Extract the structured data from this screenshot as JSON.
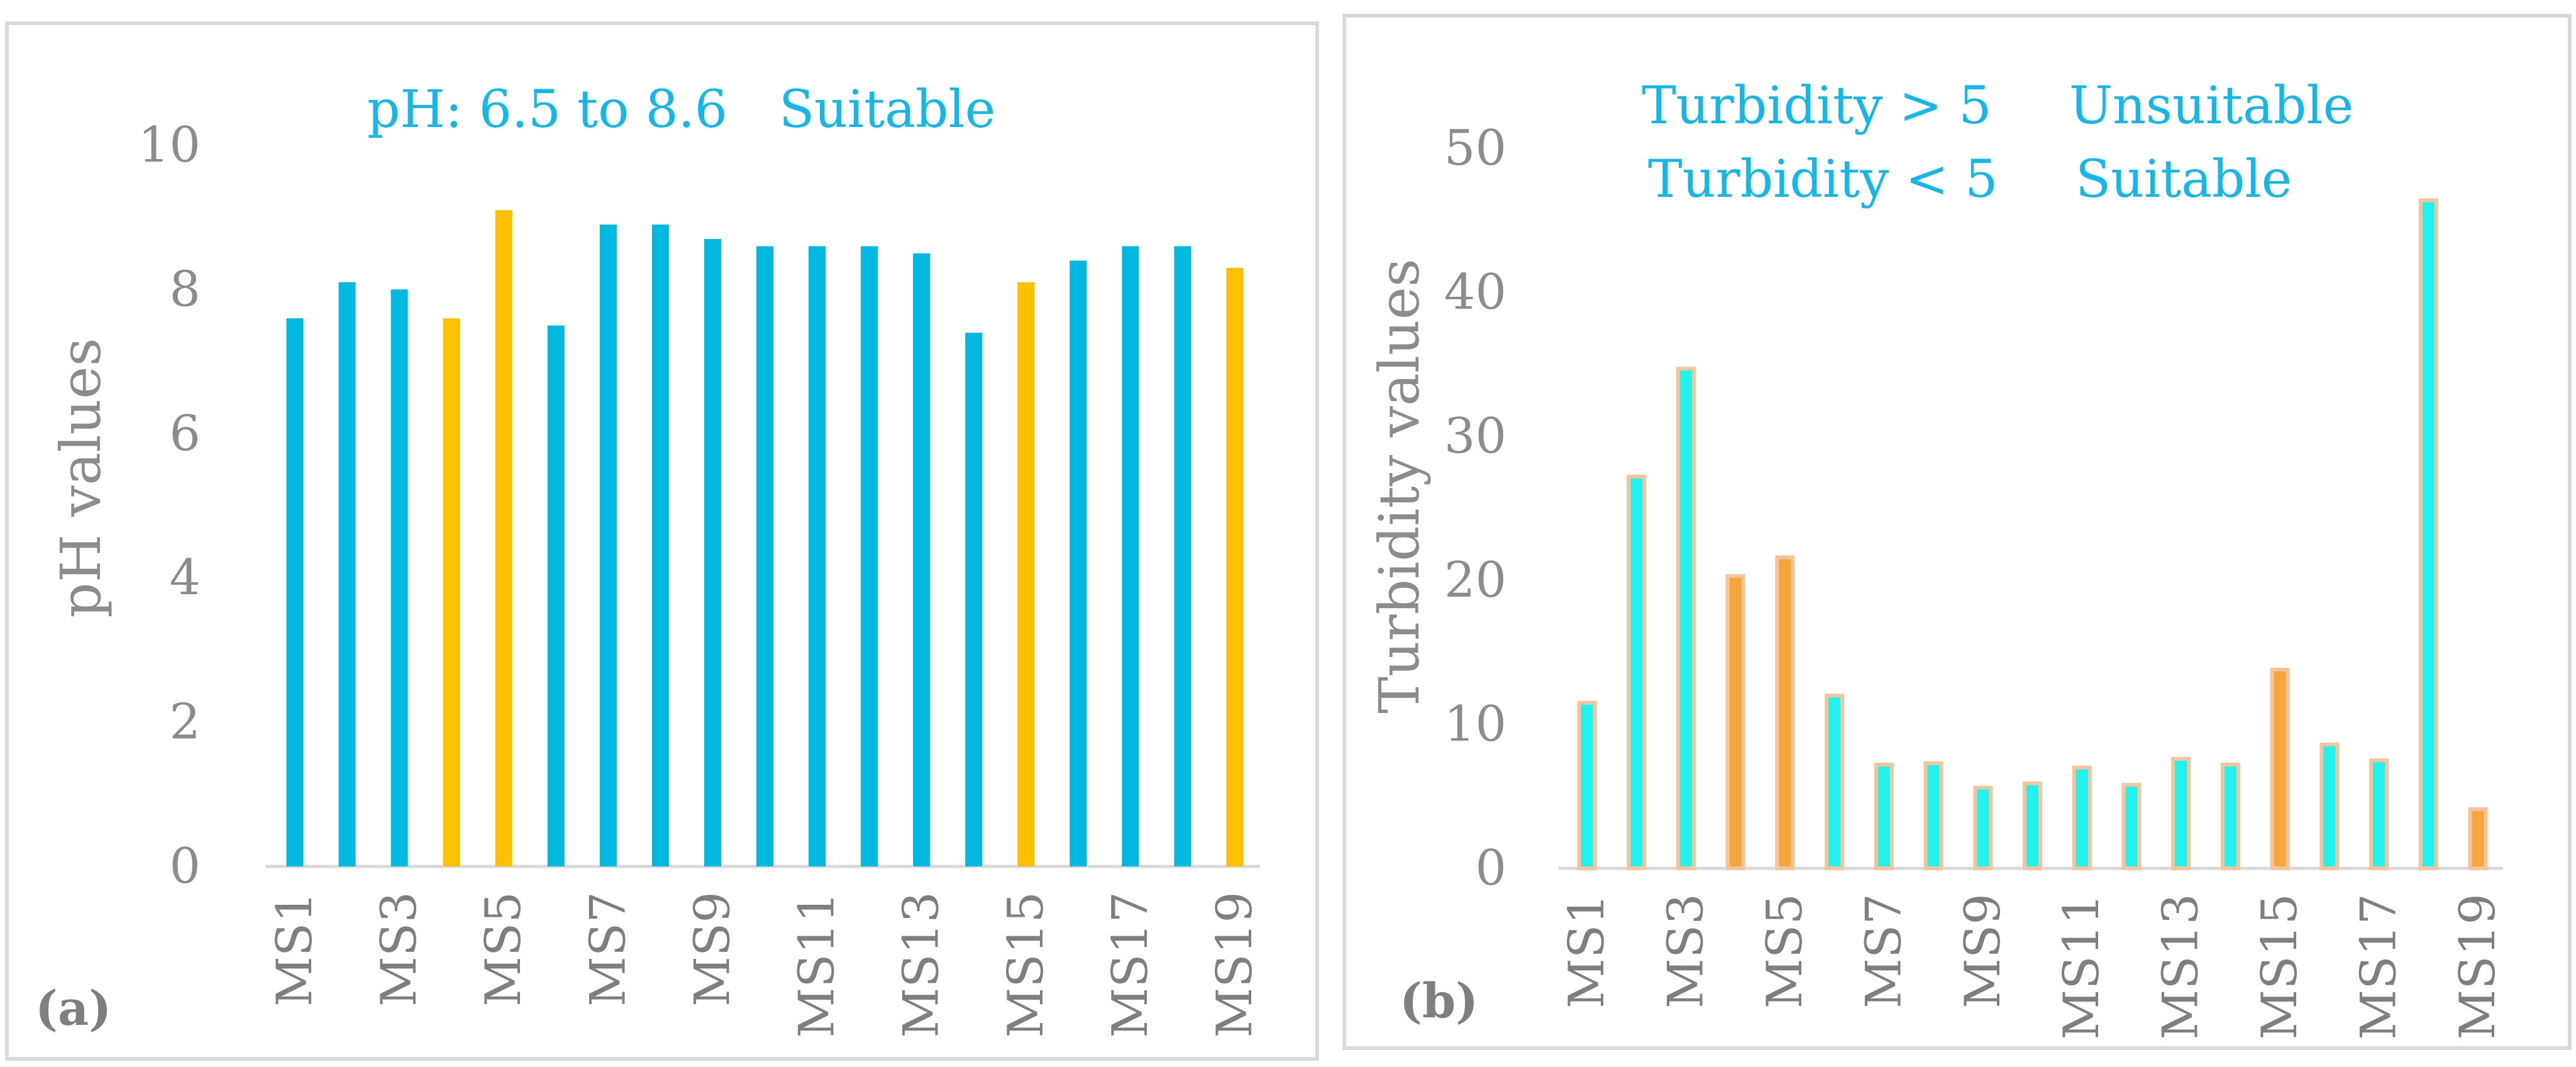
{
  "colors": {
    "blue_bar": "#00b8e0",
    "orange_bar": "#ffc000",
    "cyan_bar": "#22f2ee",
    "orange_fill": "#f4a63a",
    "peach_outline": "#f6c39b",
    "axis": "#d9d9d9",
    "note_text": "#12b7ec"
  },
  "chart_data": [
    {
      "type": "bar",
      "panel_label": "(a)",
      "ylabel": "pH values",
      "ylim": [
        0,
        10
      ],
      "yticks": [
        0,
        2,
        4,
        6,
        8,
        10
      ],
      "categories": [
        "MS1",
        "MS2",
        "MS3",
        "MS4",
        "MS5",
        "MS6",
        "MS7",
        "MS8",
        "MS9",
        "MS10",
        "MS11",
        "MS12",
        "MS13",
        "MS14",
        "MS15",
        "MS16",
        "MS17",
        "MS18",
        "MS19"
      ],
      "visible_category_labels": [
        "MS1",
        "MS3",
        "MS5",
        "MS7",
        "MS9",
        "MS11",
        "MS13",
        "MS15",
        "MS17",
        "MS19"
      ],
      "values": [
        7.6,
        8.1,
        8.0,
        7.6,
        9.1,
        7.5,
        8.9,
        8.9,
        8.7,
        8.6,
        8.6,
        8.6,
        8.5,
        7.4,
        8.1,
        8.4,
        8.6,
        8.6,
        8.3
      ],
      "highlight": [
        "blue",
        "blue",
        "blue",
        "orange",
        "orange",
        "blue",
        "blue",
        "blue",
        "blue",
        "blue",
        "blue",
        "blue",
        "blue",
        "blue",
        "orange",
        "blue",
        "blue",
        "blue",
        "orange"
      ],
      "annotation": {
        "label": "pH: 6.5 to 8.6",
        "status": "Suitable"
      }
    },
    {
      "type": "bar",
      "panel_label": "(b)",
      "ylabel": "Turbidity values",
      "ylim": [
        0,
        50
      ],
      "yticks": [
        0,
        10,
        20,
        30,
        40,
        50
      ],
      "categories": [
        "MS1",
        "MS2",
        "MS3",
        "MS4",
        "MS5",
        "MS6",
        "MS7",
        "MS8",
        "MS9",
        "MS10",
        "MS11",
        "MS12",
        "MS13",
        "MS14",
        "MS15",
        "MS16",
        "MS17",
        "MS18",
        "MS19"
      ],
      "visible_category_labels": [
        "MS1",
        "MS3",
        "MS5",
        "MS7",
        "MS9",
        "MS11",
        "MS13",
        "MS15",
        "MS17",
        "MS19"
      ],
      "values": [
        11.5,
        27.2,
        34.7,
        20.3,
        21.6,
        12.0,
        7.2,
        7.3,
        5.6,
        5.9,
        7.0,
        5.8,
        7.6,
        7.2,
        13.8,
        8.6,
        7.5,
        46.4,
        4.1
      ],
      "highlight": [
        "cyan",
        "cyan",
        "cyan",
        "orange",
        "orange",
        "cyan",
        "cyan",
        "cyan",
        "cyan",
        "cyan",
        "cyan",
        "cyan",
        "cyan",
        "cyan",
        "orange",
        "cyan",
        "cyan",
        "cyan",
        "orange"
      ],
      "annotations": [
        {
          "label": "Turbidity > 5",
          "status": "Unsuitable"
        },
        {
          "label": "Turbidity < 5",
          "status": "Suitable"
        }
      ]
    }
  ]
}
